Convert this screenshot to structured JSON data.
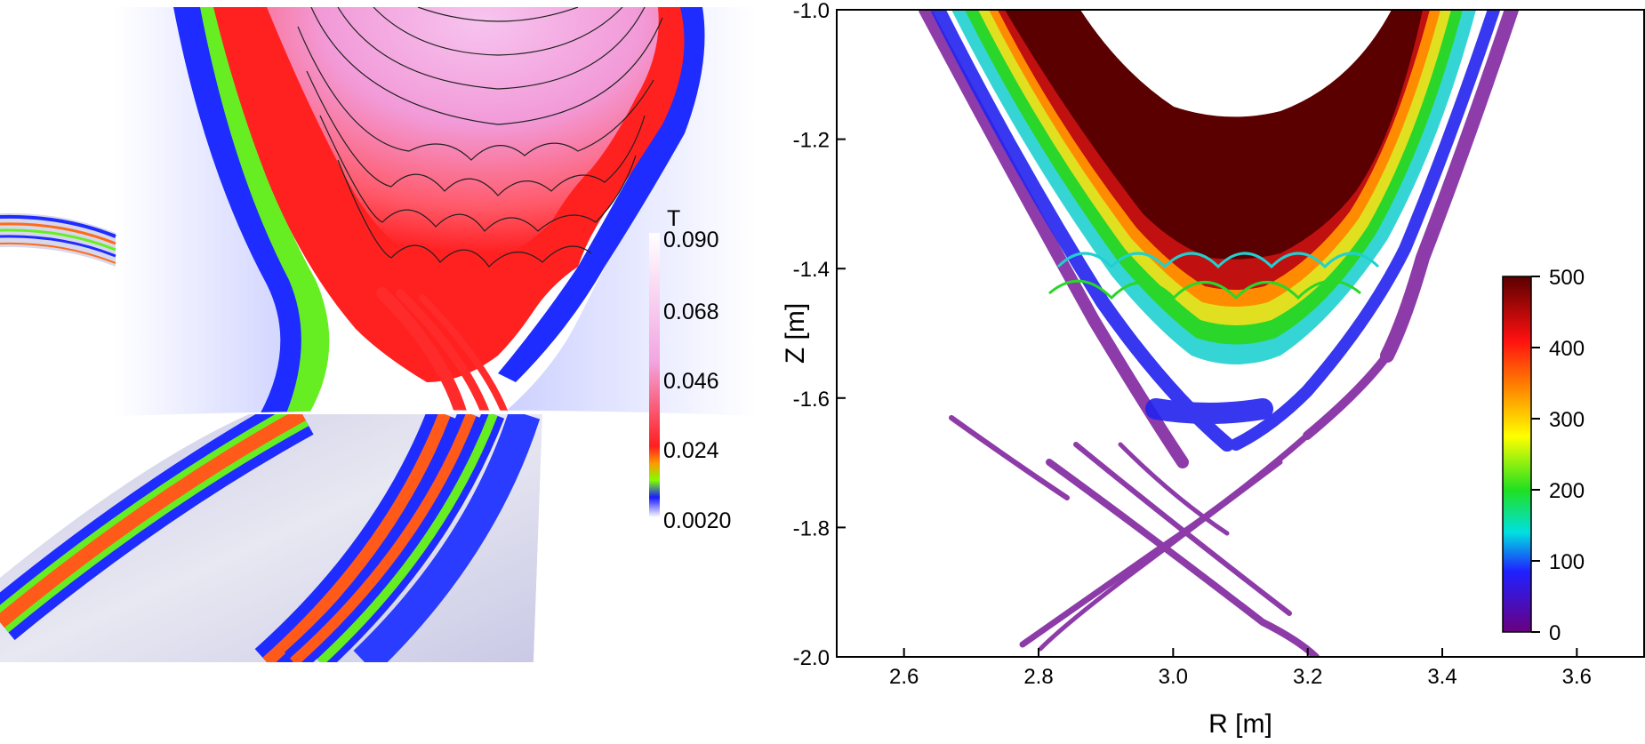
{
  "chart_data": [
    {
      "type": "heatmap",
      "title": "",
      "xlabel": "",
      "ylabel": "",
      "colorbar": {
        "label": "T",
        "ticks": [
          "0.090",
          "0.068",
          "0.046",
          "0.024",
          "0.0020"
        ],
        "values": [
          0.09,
          0.068,
          0.046,
          0.024,
          0.002
        ],
        "colors": [
          "#ffffff",
          "#f2a6e2",
          "#ff1f1f",
          "#ff9900",
          "#7fff00",
          "#1a1aff",
          "#ffffff"
        ]
      },
      "grid": false
    },
    {
      "type": "scatter",
      "title": "",
      "xlabel": "R [m]",
      "ylabel": "Z [m]",
      "xlim": [
        2.5,
        3.7
      ],
      "ylim": [
        -2.0,
        -1.0
      ],
      "xticks": [
        "2.6",
        "2.8",
        "3.0",
        "3.2",
        "3.4",
        "3.6"
      ],
      "xtick_values": [
        2.6,
        2.8,
        3.0,
        3.2,
        3.4,
        3.6
      ],
      "yticks": [
        "-1.0",
        "-1.2",
        "-1.4",
        "-1.6",
        "-1.8",
        "-2.0"
      ],
      "ytick_values": [
        -1.0,
        -1.2,
        -1.4,
        -1.6,
        -1.8,
        -2.0
      ],
      "grid": false,
      "colorbar": {
        "ticks": [
          "500",
          "400",
          "300",
          "200",
          "100",
          "0"
        ],
        "values": [
          500,
          400,
          300,
          200,
          100,
          0
        ],
        "range": [
          0,
          500
        ],
        "colors": [
          "#6a0080",
          "#2020ff",
          "#00e0e0",
          "#20e020",
          "#ffff00",
          "#ff8c00",
          "#ff1010",
          "#5a0000"
        ]
      }
    }
  ]
}
